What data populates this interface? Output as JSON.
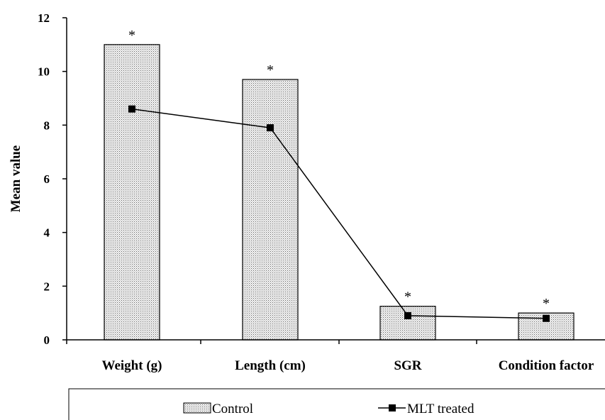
{
  "chart_data": {
    "type": "bar",
    "categories": [
      "Weight (g)",
      "Length (cm)",
      "SGR",
      "Condition factor"
    ],
    "series": [
      {
        "name": "Control",
        "type": "bar",
        "values": [
          11.0,
          9.7,
          1.25,
          1.0
        ]
      },
      {
        "name": "MLT treated",
        "type": "line",
        "values": [
          8.6,
          7.9,
          0.9,
          0.8
        ]
      }
    ],
    "annotations": [
      "*",
      "*",
      "*",
      "*"
    ],
    "ylabel": "Mean value",
    "ylim": [
      0,
      12
    ],
    "yticks": [
      "0",
      "2",
      "4",
      "6",
      "8",
      "10",
      "12"
    ],
    "grid": false,
    "legend_position": "bottom"
  }
}
